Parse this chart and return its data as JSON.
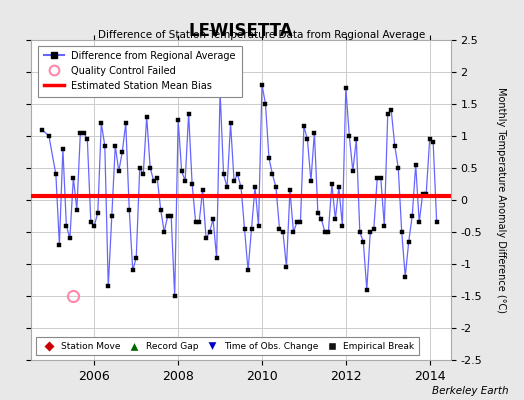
{
  "title": "LEWISETTA",
  "subtitle": "Difference of Station Temperature Data from Regional Average",
  "ylabel": "Monthly Temperature Anomaly Difference (°C)",
  "xlim": [
    2004.5,
    2014.5
  ],
  "ylim": [
    -2.5,
    2.5
  ],
  "yticks": [
    -2.5,
    -2,
    -1.5,
    -1,
    -0.5,
    0,
    0.5,
    1,
    1.5,
    2,
    2.5
  ],
  "xticks": [
    2006,
    2008,
    2010,
    2012,
    2014
  ],
  "mean_bias": 0.07,
  "background_color": "#e8e8e8",
  "line_color": "#6666ff",
  "bias_color": "#ff0000",
  "credit": "Berkeley Earth",
  "data_x": [
    2004.75,
    2004.917,
    2005.083,
    2005.167,
    2005.25,
    2005.333,
    2005.417,
    2005.5,
    2005.583,
    2005.667,
    2005.75,
    2005.833,
    2005.917,
    2006.0,
    2006.083,
    2006.167,
    2006.25,
    2006.333,
    2006.417,
    2006.5,
    2006.583,
    2006.667,
    2006.75,
    2006.833,
    2006.917,
    2007.0,
    2007.083,
    2007.167,
    2007.25,
    2007.333,
    2007.417,
    2007.5,
    2007.583,
    2007.667,
    2007.75,
    2007.833,
    2007.917,
    2008.0,
    2008.083,
    2008.167,
    2008.25,
    2008.333,
    2008.417,
    2008.5,
    2008.583,
    2008.667,
    2008.75,
    2008.833,
    2008.917,
    2009.0,
    2009.083,
    2009.167,
    2009.25,
    2009.333,
    2009.417,
    2009.5,
    2009.583,
    2009.667,
    2009.75,
    2009.833,
    2009.917,
    2010.0,
    2010.083,
    2010.167,
    2010.25,
    2010.333,
    2010.417,
    2010.5,
    2010.583,
    2010.667,
    2010.75,
    2010.833,
    2010.917,
    2011.0,
    2011.083,
    2011.167,
    2011.25,
    2011.333,
    2011.417,
    2011.5,
    2011.583,
    2011.667,
    2011.75,
    2011.833,
    2011.917,
    2012.0,
    2012.083,
    2012.167,
    2012.25,
    2012.333,
    2012.417,
    2012.5,
    2012.583,
    2012.667,
    2012.75,
    2012.833,
    2012.917,
    2013.0,
    2013.083,
    2013.167,
    2013.25,
    2013.333,
    2013.417,
    2013.5,
    2013.583,
    2013.667,
    2013.75,
    2013.833,
    2013.917,
    2014.0,
    2014.083,
    2014.167
  ],
  "data_y": [
    1.1,
    1.0,
    0.4,
    -0.7,
    0.8,
    -0.4,
    -0.6,
    0.35,
    -0.15,
    1.05,
    1.05,
    0.95,
    -0.35,
    -0.4,
    -0.2,
    1.2,
    0.85,
    -1.35,
    -0.25,
    0.85,
    0.45,
    0.75,
    1.2,
    -0.15,
    -1.1,
    -0.9,
    0.5,
    0.4,
    1.3,
    0.5,
    0.3,
    0.35,
    -0.15,
    -0.5,
    -0.25,
    -0.25,
    -1.5,
    1.25,
    0.45,
    0.3,
    1.35,
    0.25,
    -0.35,
    -0.35,
    0.15,
    -0.6,
    -0.5,
    -0.3,
    -0.9,
    1.7,
    0.4,
    0.2,
    1.2,
    0.3,
    0.4,
    0.2,
    -0.45,
    -1.1,
    -0.45,
    0.2,
    -0.4,
    1.8,
    1.5,
    0.65,
    0.4,
    0.2,
    -0.45,
    -0.5,
    -1.05,
    0.15,
    -0.5,
    -0.35,
    -0.35,
    1.15,
    0.95,
    0.3,
    1.05,
    -0.2,
    -0.3,
    -0.5,
    -0.5,
    0.25,
    -0.3,
    0.2,
    -0.4,
    1.75,
    1.0,
    0.45,
    0.95,
    -0.5,
    -0.65,
    -1.4,
    -0.5,
    -0.45,
    0.35,
    0.35,
    -0.4,
    1.35,
    1.4,
    0.85,
    0.5,
    -0.5,
    -1.2,
    -0.65,
    -0.25,
    0.55,
    -0.35,
    0.1,
    0.1,
    0.95,
    0.9,
    -0.35
  ],
  "qc_failed_x": [
    2005.5
  ],
  "qc_failed_y": [
    -1.5
  ],
  "legend_top_items": [
    {
      "label": "Difference from Regional Average",
      "type": "line"
    },
    {
      "label": "Quality Control Failed",
      "type": "circle"
    },
    {
      "label": "Estimated Station Mean Bias",
      "type": "redline"
    }
  ],
  "legend_bot_items": [
    {
      "label": "Station Move",
      "marker": "D",
      "color": "#cc0000"
    },
    {
      "label": "Record Gap",
      "marker": "^",
      "color": "#006600"
    },
    {
      "label": "Time of Obs. Change",
      "marker": "v",
      "color": "#0000cc"
    },
    {
      "label": "Empirical Break",
      "marker": "s",
      "color": "#111111"
    }
  ]
}
